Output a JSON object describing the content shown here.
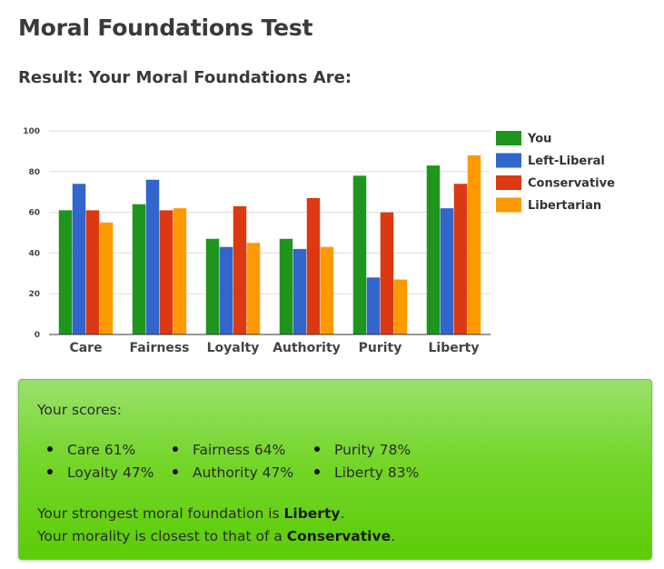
{
  "page": {
    "title": "Moral Foundations Test",
    "result_heading": "Result: Your Moral Foundations Are:"
  },
  "chart_data": {
    "type": "bar",
    "title": "",
    "xlabel": "",
    "ylabel": "",
    "categories": [
      "Care",
      "Fairness",
      "Loyalty",
      "Authority",
      "Purity",
      "Liberty"
    ],
    "series": [
      {
        "name": "You",
        "color": "#1e961e",
        "values": [
          61,
          64,
          47,
          47,
          78,
          83
        ]
      },
      {
        "name": "Left-Liberal",
        "color": "#3366cc",
        "values": [
          74,
          76,
          43,
          42,
          28,
          62
        ]
      },
      {
        "name": "Conservative",
        "color": "#dc3912",
        "values": [
          61,
          61,
          63,
          67,
          60,
          74
        ]
      },
      {
        "name": "Libertarian",
        "color": "#ff9900",
        "values": [
          55,
          62,
          45,
          43,
          27,
          88
        ]
      }
    ],
    "ylim": [
      0,
      100
    ],
    "yticks": [
      "0",
      "20",
      "40",
      "60",
      "80",
      "100"
    ],
    "grid": true,
    "legend_position": "right"
  },
  "scores": {
    "heading": "Your scores:",
    "items": [
      "Care 61%",
      "Loyalty 47%",
      "Fairness 64%",
      "Authority 47%",
      "Purity 78%",
      "Liberty 83%"
    ]
  },
  "summary": {
    "strongest_prefix": "Your strongest moral foundation is ",
    "strongest_value": "Liberty",
    "strongest_suffix": ".",
    "closest_prefix": "Your morality is closest to that of a ",
    "closest_value": "Conservative",
    "closest_suffix": "."
  },
  "colors": {
    "box_top": "#9ae16c",
    "box_bottom": "#5ccc08"
  }
}
